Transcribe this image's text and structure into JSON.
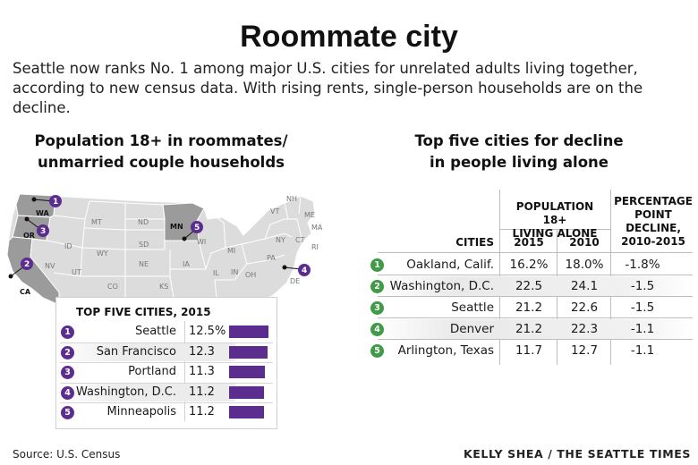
{
  "headline": "Roommate city",
  "intro": "Seattle now ranks No. 1 among major U.S. cities for unrelated adults living together, according to new census data. With rising rents, single-person households are on the decline.",
  "left_section": {
    "title_line1": "Population 18+ in roommates/",
    "title_line2": "unmarried couple households"
  },
  "right_section": {
    "title_line1": "Top five cities for decline",
    "title_line2": "in people living alone"
  },
  "map": {
    "state_labels": [
      "WA",
      "OR",
      "CA",
      "NV",
      "ID",
      "MT",
      "WY",
      "UT",
      "CO",
      "ND",
      "SD",
      "NE",
      "KS",
      "MN",
      "IA",
      "WI",
      "MI",
      "IL",
      "OH",
      "IN",
      "PA",
      "NY",
      "VT",
      "NH",
      "ME",
      "MA",
      "CT",
      "RI",
      "DE"
    ],
    "highlighted_states": [
      "WA",
      "OR",
      "CA",
      "MN"
    ],
    "pins": [
      "1",
      "2",
      "3",
      "4",
      "5"
    ]
  },
  "colors": {
    "purple": "#5b2d8e",
    "green": "#3f9b47",
    "highlight": "#9b9b9b",
    "land": "#dcdcdc"
  },
  "top5": {
    "heading": "TOP FIVE CITIES, 2015",
    "rows": [
      {
        "rank": "1",
        "city": "Seattle",
        "value": "12.5%"
      },
      {
        "rank": "2",
        "city": "San Francisco",
        "value": "12.3"
      },
      {
        "rank": "3",
        "city": "Portland",
        "value": "11.3"
      },
      {
        "rank": "4",
        "city": "Washington, D.C.",
        "value": "11.2"
      },
      {
        "rank": "5",
        "city": "Minneapolis",
        "value": "11.2"
      }
    ]
  },
  "decline_table": {
    "group_header": "POPULATION 18+ LIVING ALONE",
    "group_header_line1": "POPULATION 18+",
    "group_header_line2": "LIVING ALONE",
    "pct_header_line1": "PERCENTAGE",
    "pct_header_line2": "POINT",
    "pct_header_line3": "DECLINE,",
    "pct_header_line4": "2010-2015",
    "col_cities": "CITIES",
    "col_2015": "2015",
    "col_2010": "2010",
    "rows": [
      {
        "rank": "1",
        "city": "Oakland, Calif.",
        "v2015": "16.2%",
        "v2010": "18.0%",
        "decline": "-1.8%"
      },
      {
        "rank": "2",
        "city": "Washington, D.C.",
        "v2015": "22.5",
        "v2010": "24.1",
        "decline": "-1.5"
      },
      {
        "rank": "3",
        "city": "Seattle",
        "v2015": "21.2",
        "v2010": "22.6",
        "decline": "-1.5"
      },
      {
        "rank": "4",
        "city": "Denver",
        "v2015": "21.2",
        "v2010": "22.3",
        "decline": "-1.1"
      },
      {
        "rank": "5",
        "city": "Arlington, Texas",
        "v2015": "11.7",
        "v2010": "12.7",
        "decline": "-1.1"
      }
    ]
  },
  "chart_data": [
    {
      "type": "bar",
      "title": "TOP FIVE CITIES, 2015",
      "categories": [
        "Seattle",
        "San Francisco",
        "Portland",
        "Washington, D.C.",
        "Minneapolis"
      ],
      "values": [
        12.5,
        12.3,
        11.3,
        11.2,
        11.2
      ],
      "xlabel": "",
      "ylabel": ""
    },
    {
      "type": "table",
      "title": "Top five cities for decline in people living alone",
      "columns": [
        "CITIES",
        "2015",
        "2010",
        "PERCENTAGE POINT DECLINE, 2010-2015"
      ],
      "rows": [
        [
          "Oakland, Calif.",
          16.2,
          18.0,
          -1.8
        ],
        [
          "Washington, D.C.",
          22.5,
          24.1,
          -1.5
        ],
        [
          "Seattle",
          21.2,
          22.6,
          -1.5
        ],
        [
          "Denver",
          21.2,
          22.3,
          -1.1
        ],
        [
          "Arlington, Texas",
          11.7,
          12.7,
          -1.1
        ]
      ]
    }
  ],
  "source": "Source: U.S. Census",
  "credit": "KELLY SHEA / THE SEATTLE TIMES"
}
